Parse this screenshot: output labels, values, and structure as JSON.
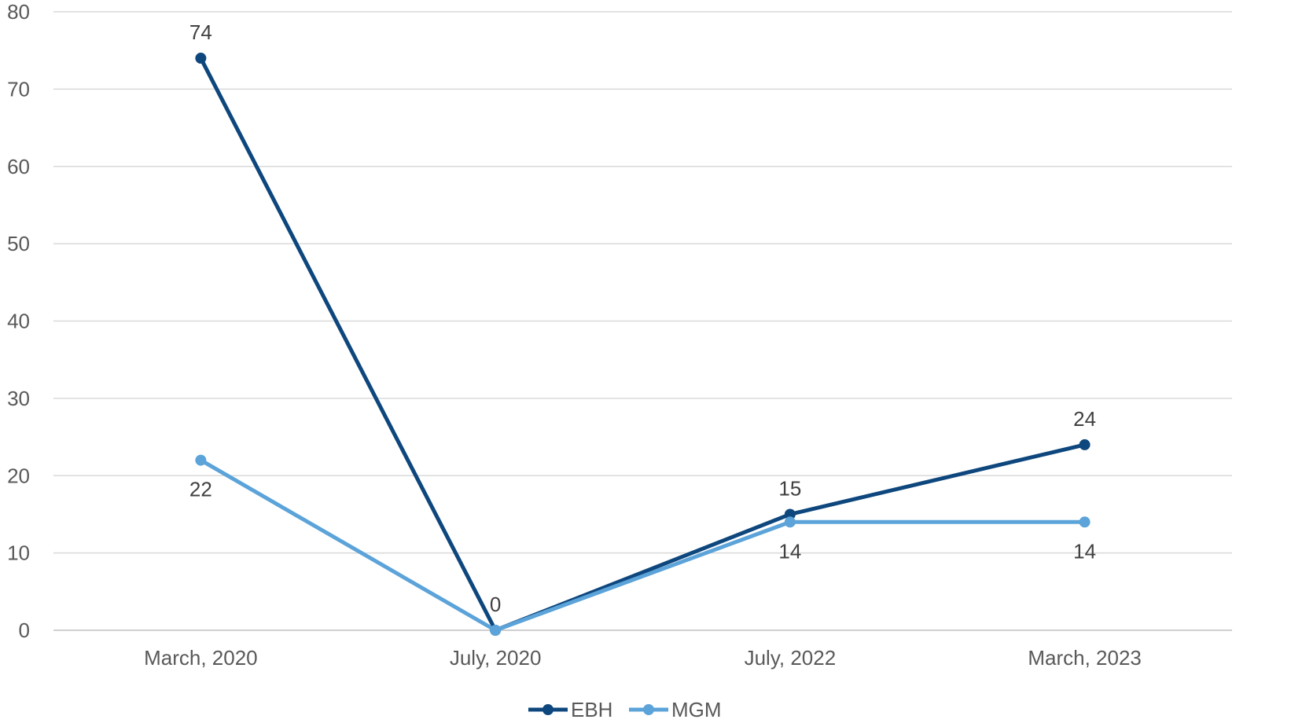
{
  "chart_data": {
    "type": "line",
    "categories": [
      "March, 2020",
      "July, 2020",
      "July, 2022",
      "March, 2023"
    ],
    "ylim": [
      0,
      80
    ],
    "yticks": [
      0,
      10,
      20,
      30,
      40,
      50,
      60,
      70,
      80
    ],
    "grid": true,
    "legend_position": "bottom",
    "series": [
      {
        "name": "EBH",
        "values": [
          74,
          0,
          15,
          24
        ],
        "color": "#0E477D",
        "labels": [
          "74",
          "0",
          "15",
          "24"
        ],
        "label_position": "above"
      },
      {
        "name": "MGM",
        "values": [
          22,
          0,
          14,
          14
        ],
        "color": "#5BA3D9",
        "labels": [
          "22",
          "",
          "14",
          "14"
        ],
        "label_position": "below"
      }
    ]
  }
}
